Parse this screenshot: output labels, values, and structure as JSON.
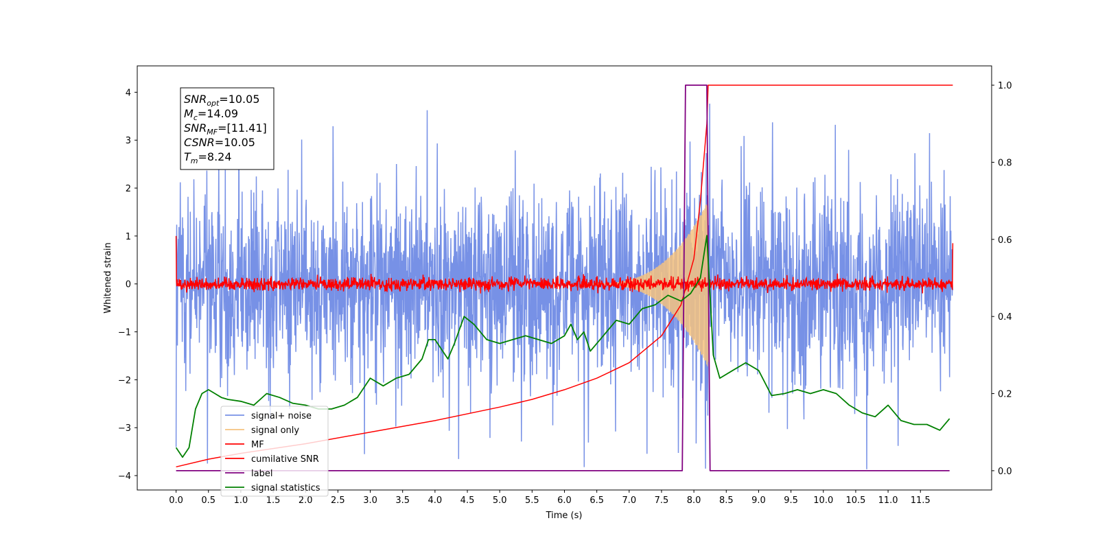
{
  "chart_data": {
    "type": "line",
    "xlabel": "Time (s)",
    "ylabel": "Whitened strain",
    "xlim": [
      -0.6,
      12.6
    ],
    "ylim": [
      -4.3,
      4.55
    ],
    "y2lim": [
      -0.05,
      1.05
    ],
    "x_ticks": [
      "0.0",
      "0.5",
      "1.0",
      "1.5",
      "2.0",
      "2.5",
      "3.0",
      "3.5",
      "4.0",
      "4.5",
      "5.0",
      "5.5",
      "6.0",
      "6.5",
      "7.0",
      "7.5",
      "8.0",
      "8.5",
      "9.0",
      "9.5",
      "10.0",
      "10.5",
      "11.0",
      "11.5"
    ],
    "y_ticks": [
      "−4",
      "−3",
      "−2",
      "−1",
      "0",
      "1",
      "2",
      "3",
      "4"
    ],
    "y2_ticks": [
      "0.0",
      "0.2",
      "0.4",
      "0.6",
      "0.8",
      "1.0"
    ],
    "annotation": {
      "lines": [
        {
          "main": "SNR",
          "sub": "opt",
          "rest": "=10.05"
        },
        {
          "main": "M",
          "sub": "c",
          "rest": "=14.09"
        },
        {
          "main": "SNR",
          "sub": "MF",
          "rest": "=[11.41]"
        },
        {
          "main": "CSNR",
          "sub": "",
          "rest": "=10.05"
        },
        {
          "main": "T",
          "sub": "m",
          "rest": "=8.24"
        }
      ]
    },
    "legend_position": "lower-left",
    "series": [
      {
        "name": "signal+ noise",
        "color": "#7791e6",
        "axis": "left",
        "x_range": [
          0,
          12.0
        ],
        "noise_std": 1.0,
        "max": 3.9,
        "min": -3.9
      },
      {
        "name": "signal only",
        "color": "#f5c27f",
        "axis": "left",
        "chirp_start": 6.3,
        "chirp_end": 8.22,
        "peak_amplitude": 1.75
      },
      {
        "name": "MF",
        "color": "#ff0000",
        "axis": "left",
        "x_range": [
          0,
          12.0
        ],
        "baseline": 0.0,
        "std": 0.07,
        "start_value": 1.0,
        "end_value": 0.85
      },
      {
        "name": "cumilative SNR",
        "color": "#ff0000",
        "axis": "right",
        "points": [
          [
            0.0,
            0.01
          ],
          [
            0.5,
            0.03
          ],
          [
            1.0,
            0.045
          ],
          [
            2.0,
            0.07
          ],
          [
            3.0,
            0.1
          ],
          [
            4.0,
            0.13
          ],
          [
            5.0,
            0.165
          ],
          [
            5.5,
            0.185
          ],
          [
            6.0,
            0.21
          ],
          [
            6.5,
            0.24
          ],
          [
            7.0,
            0.28
          ],
          [
            7.5,
            0.35
          ],
          [
            7.8,
            0.43
          ],
          [
            8.0,
            0.55
          ],
          [
            8.1,
            0.7
          ],
          [
            8.2,
            0.9
          ],
          [
            8.22,
            1.0
          ],
          [
            12.0,
            1.0
          ]
        ]
      },
      {
        "name": "label",
        "color": "#800080",
        "axis": "right",
        "points": [
          [
            0.0,
            0.0
          ],
          [
            7.82,
            0.0
          ],
          [
            7.87,
            1.0
          ],
          [
            8.2,
            1.0
          ],
          [
            8.25,
            0.0
          ],
          [
            11.95,
            0.0
          ]
        ]
      },
      {
        "name": "signal statistics",
        "color": "#008000",
        "axis": "right",
        "points": [
          [
            0.0,
            0.06
          ],
          [
            0.1,
            0.035
          ],
          [
            0.2,
            0.06
          ],
          [
            0.3,
            0.16
          ],
          [
            0.4,
            0.2
          ],
          [
            0.5,
            0.21
          ],
          [
            0.6,
            0.2
          ],
          [
            0.7,
            0.19
          ],
          [
            0.8,
            0.185
          ],
          [
            1.0,
            0.18
          ],
          [
            1.2,
            0.17
          ],
          [
            1.4,
            0.2
          ],
          [
            1.6,
            0.19
          ],
          [
            1.8,
            0.175
          ],
          [
            2.0,
            0.17
          ],
          [
            2.2,
            0.16
          ],
          [
            2.4,
            0.16
          ],
          [
            2.6,
            0.17
          ],
          [
            2.8,
            0.19
          ],
          [
            3.0,
            0.24
          ],
          [
            3.2,
            0.22
          ],
          [
            3.4,
            0.24
          ],
          [
            3.6,
            0.25
          ],
          [
            3.8,
            0.29
          ],
          [
            3.9,
            0.34
          ],
          [
            4.0,
            0.34
          ],
          [
            4.2,
            0.29
          ],
          [
            4.3,
            0.33
          ],
          [
            4.45,
            0.4
          ],
          [
            4.6,
            0.38
          ],
          [
            4.8,
            0.34
          ],
          [
            5.0,
            0.33
          ],
          [
            5.2,
            0.34
          ],
          [
            5.4,
            0.35
          ],
          [
            5.6,
            0.34
          ],
          [
            5.8,
            0.33
          ],
          [
            6.0,
            0.35
          ],
          [
            6.1,
            0.38
          ],
          [
            6.2,
            0.34
          ],
          [
            6.3,
            0.36
          ],
          [
            6.4,
            0.31
          ],
          [
            6.6,
            0.35
          ],
          [
            6.8,
            0.39
          ],
          [
            7.0,
            0.38
          ],
          [
            7.2,
            0.42
          ],
          [
            7.4,
            0.43
          ],
          [
            7.6,
            0.455
          ],
          [
            7.8,
            0.44
          ],
          [
            7.95,
            0.46
          ],
          [
            8.1,
            0.5
          ],
          [
            8.2,
            0.61
          ],
          [
            8.3,
            0.3
          ],
          [
            8.4,
            0.24
          ],
          [
            8.6,
            0.26
          ],
          [
            8.8,
            0.28
          ],
          [
            9.0,
            0.26
          ],
          [
            9.2,
            0.195
          ],
          [
            9.4,
            0.2
          ],
          [
            9.6,
            0.21
          ],
          [
            9.8,
            0.2
          ],
          [
            10.0,
            0.21
          ],
          [
            10.2,
            0.2
          ],
          [
            10.4,
            0.17
          ],
          [
            10.6,
            0.15
          ],
          [
            10.8,
            0.14
          ],
          [
            11.0,
            0.17
          ],
          [
            11.2,
            0.13
          ],
          [
            11.4,
            0.12
          ],
          [
            11.6,
            0.12
          ],
          [
            11.8,
            0.105
          ],
          [
            11.95,
            0.135
          ]
        ]
      }
    ]
  }
}
